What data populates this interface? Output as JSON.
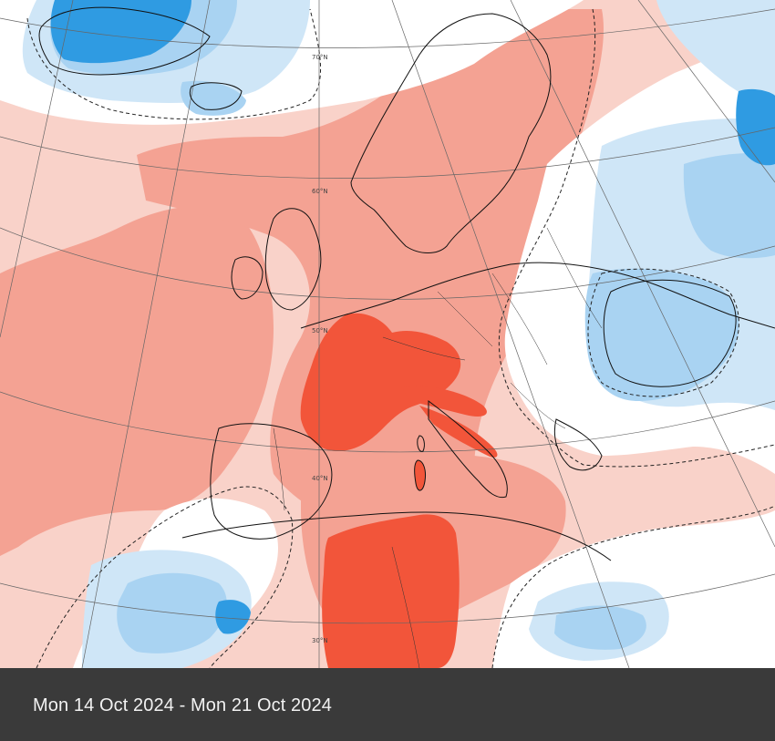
{
  "caption": {
    "date_range": "Mon 14 Oct 2024 - Mon 21 Oct 2024"
  },
  "map": {
    "latitude_labels": [
      "70°N",
      "60°N",
      "50°N",
      "40°N",
      "30°N"
    ],
    "colors": {
      "anomaly_warm_strong": "#f2553a",
      "anomaly_warm_medium": "#f4a293",
      "anomaly_warm_light": "#f9d2c9",
      "anomaly_neutral": "#ffffff",
      "anomaly_cool_light": "#cfe6f7",
      "anomaly_cool_medium": "#a9d3f2",
      "anomaly_cool_strong": "#2f9be2",
      "caption_bar": "#3a3a3a"
    }
  }
}
